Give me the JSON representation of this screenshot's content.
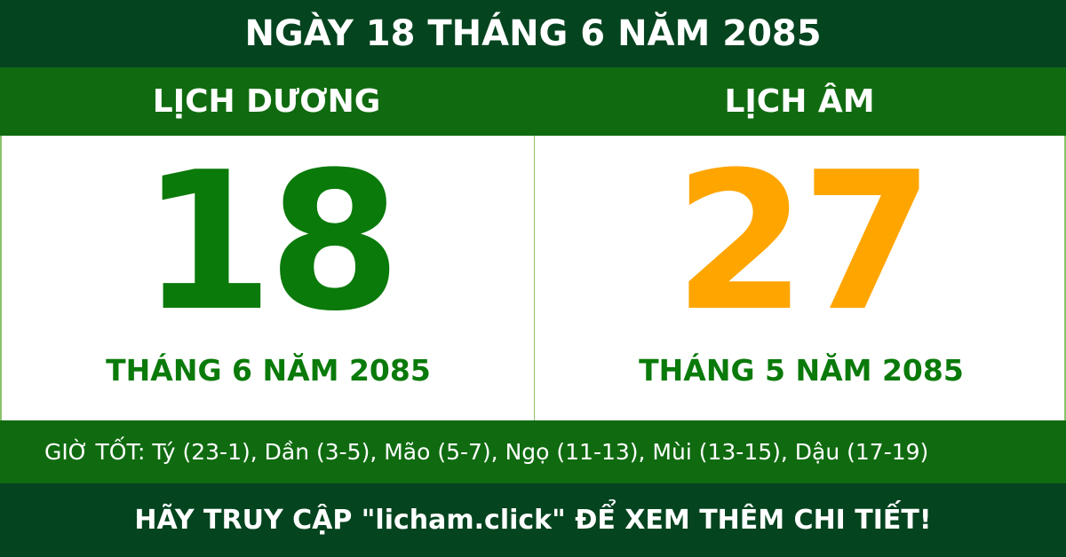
{
  "title": "NGÀY 18 THÁNG 6 NĂM 2085",
  "solar": {
    "heading": "LỊCH DƯƠNG",
    "day": "18",
    "month_year": "THÁNG 6 NĂM 2085",
    "color": "#0a7a0a"
  },
  "lunar": {
    "heading": "LỊCH ÂM",
    "day": "27",
    "month_year": "THÁNG 5 NĂM 2085",
    "color": "#ffa500"
  },
  "good_hours": "GIỜ TỐT: Tý (23-1), Dần (3-5), Mão (5-7), Ngọ (11-13), Mùi (13-15), Dậu (17-19)",
  "footer": "HÃY TRUY CẬP \"licham.click\" ĐỂ XEM THÊM CHI TIẾT!",
  "colors": {
    "dark_green": "#04441f",
    "band_green": "#106b10"
  }
}
